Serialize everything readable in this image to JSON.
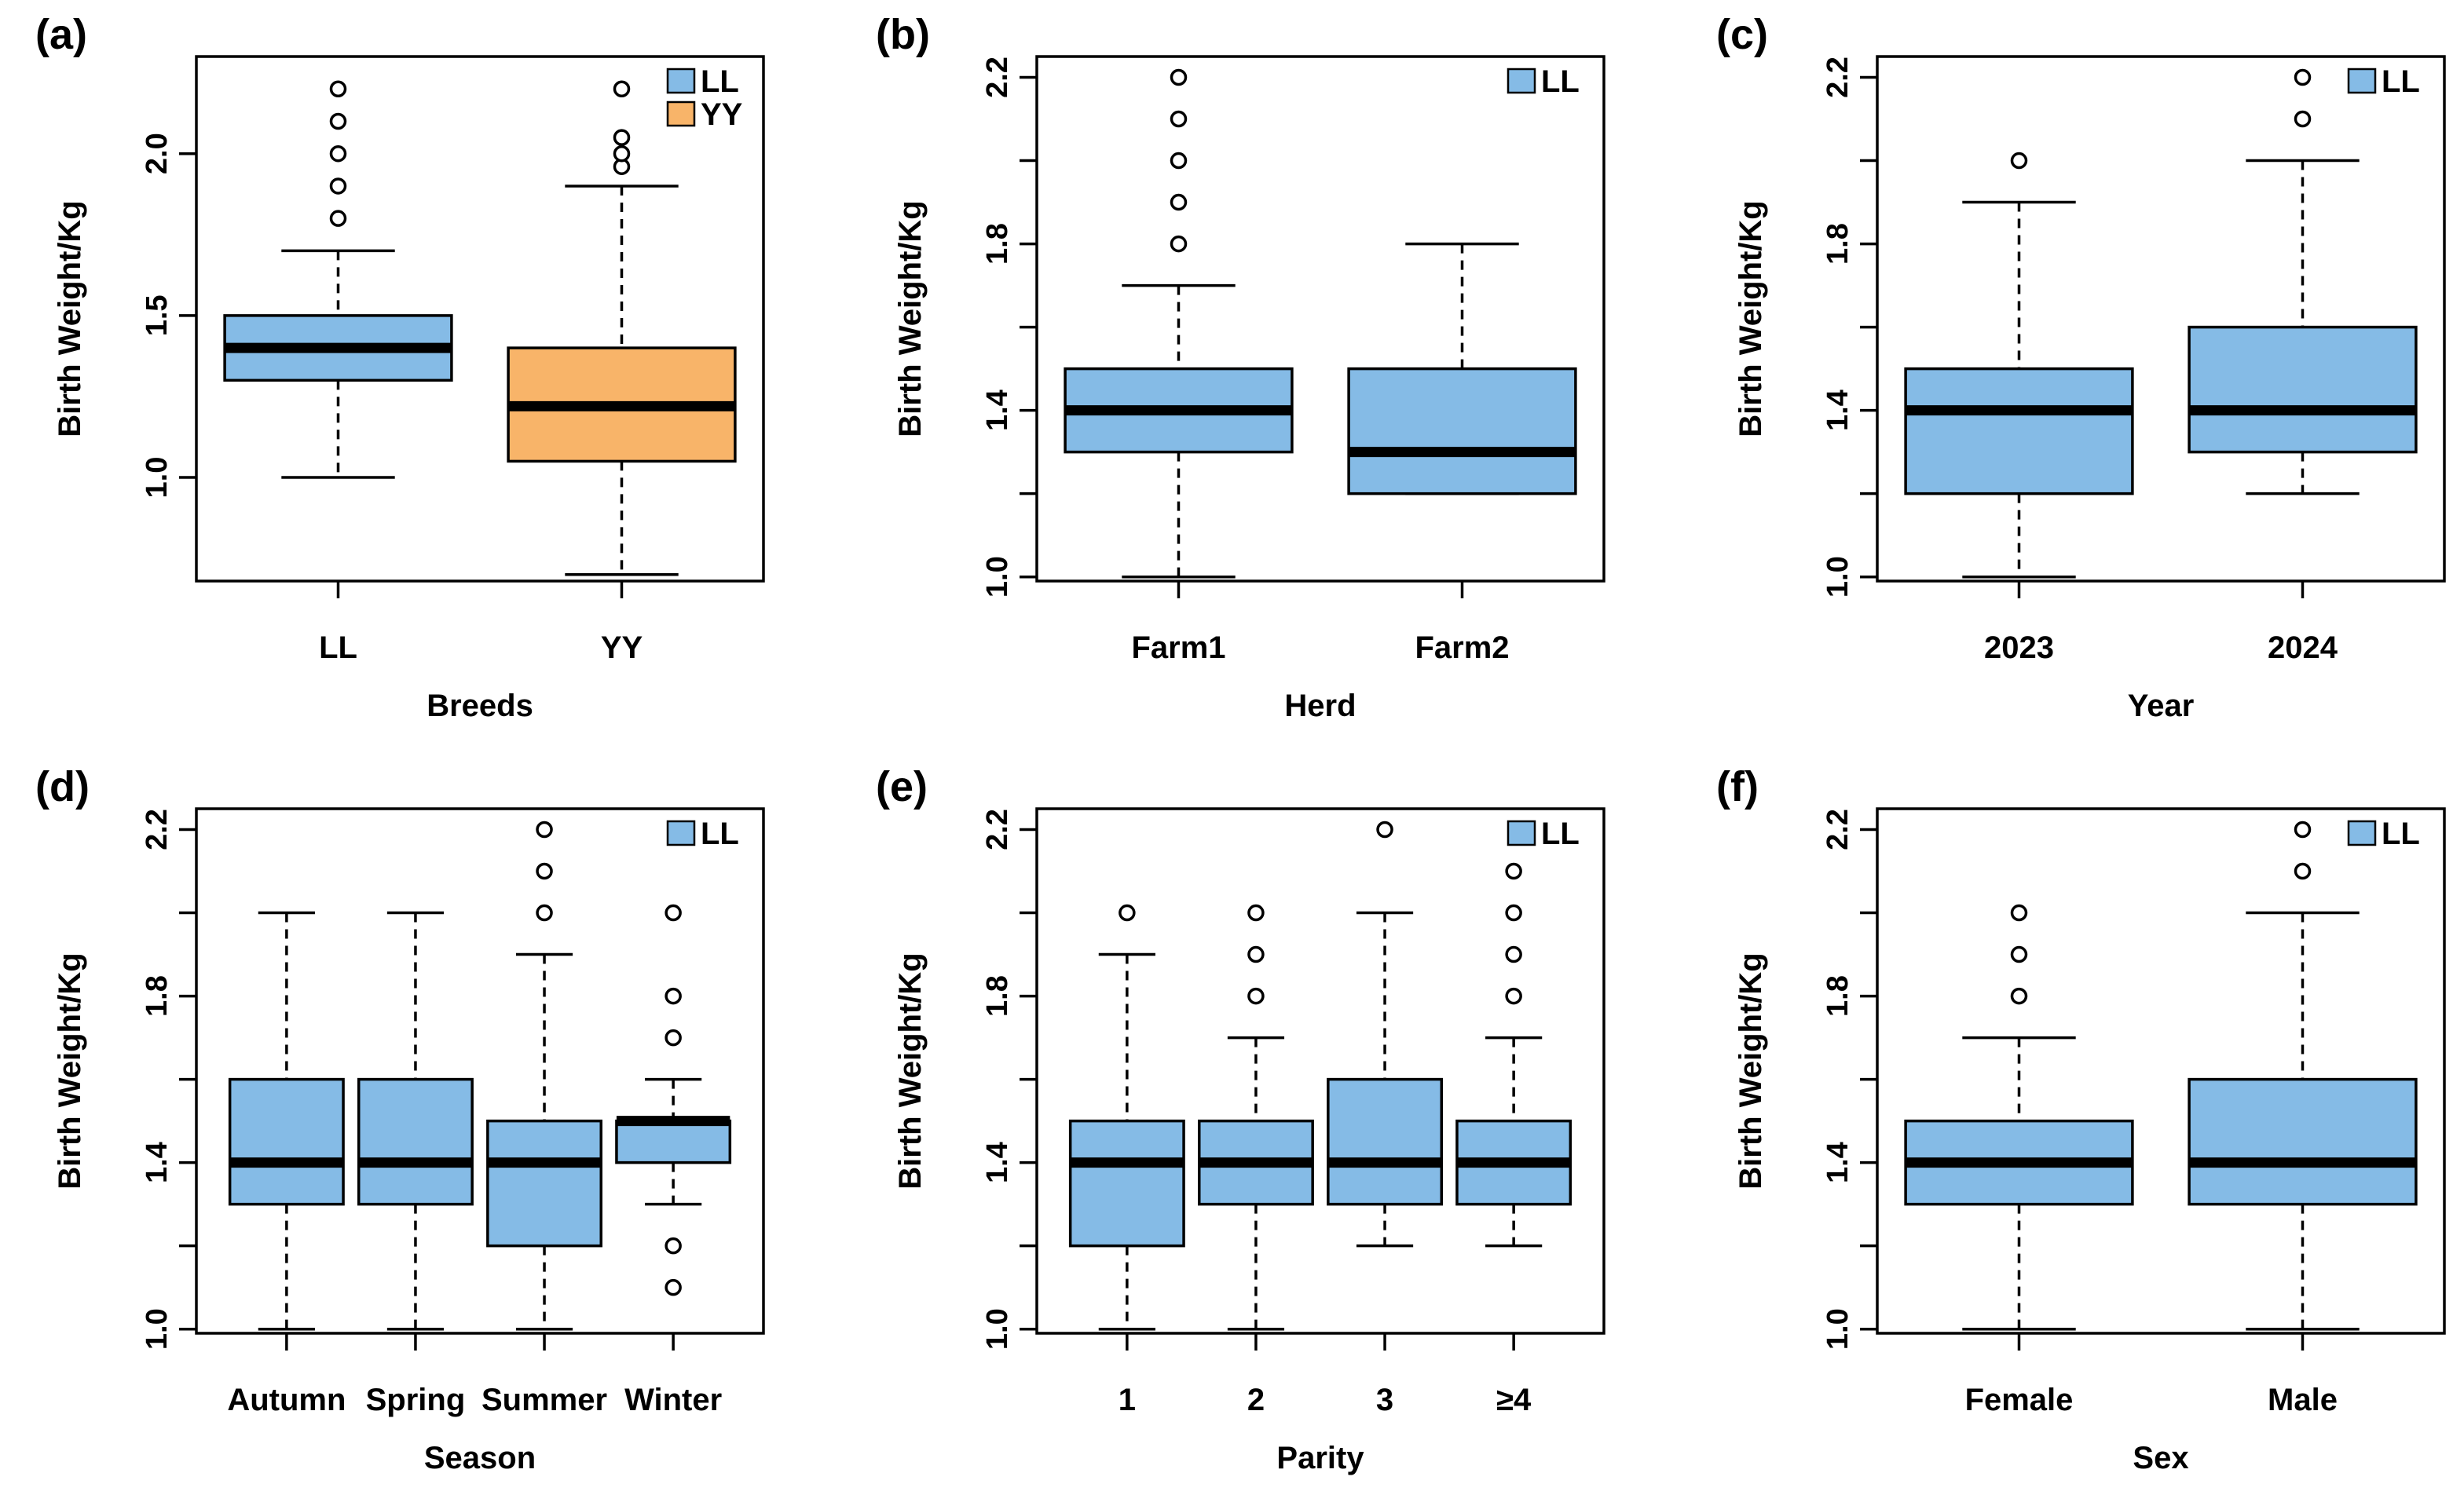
{
  "colors": {
    "LL": "#85bbe6",
    "YY": "#f8b469"
  },
  "chart_data": [
    {
      "type": "box",
      "panel_label": "(a)",
      "xlabel": "Breeds",
      "ylabel": "Birth Weight/Kg",
      "ylim": [
        0.68,
        2.3
      ],
      "yticks": [
        1.0,
        1.5,
        2.0
      ],
      "ytick_labels": [
        "1.0",
        "1.5",
        "2.0"
      ],
      "legend": [
        {
          "label": "LL",
          "color_key": "LL"
        },
        {
          "label": "YY",
          "color_key": "YY"
        }
      ],
      "groups": [
        {
          "label": "LL",
          "color_key": "LL",
          "min": 1.0,
          "q1": 1.3,
          "median": 1.4,
          "q3": 1.5,
          "max": 1.7,
          "outliers": [
            1.8,
            1.9,
            2.0,
            2.1,
            2.2
          ]
        },
        {
          "label": "YY",
          "color_key": "YY",
          "min": 0.7,
          "q1": 1.05,
          "median": 1.22,
          "q3": 1.4,
          "max": 1.9,
          "outliers": [
            1.96,
            2.0,
            2.05,
            2.2
          ]
        }
      ]
    },
    {
      "type": "box",
      "panel_label": "(b)",
      "xlabel": "Herd",
      "ylabel": "Birth Weight/Kg",
      "ylim": [
        0.99,
        2.25
      ],
      "yticks": [
        1.0,
        1.2,
        1.4,
        1.6,
        1.8,
        2.0,
        2.2
      ],
      "ytick_labels": [
        "1.0",
        "",
        "1.4",
        "",
        "1.8",
        "",
        "2.2"
      ],
      "legend": [
        {
          "label": "LL",
          "color_key": "LL"
        }
      ],
      "groups": [
        {
          "label": "Farm1",
          "color_key": "LL",
          "min": 1.0,
          "q1": 1.3,
          "median": 1.4,
          "q3": 1.5,
          "max": 1.7,
          "outliers": [
            1.8,
            1.9,
            2.0,
            2.1,
            2.2
          ]
        },
        {
          "label": "Farm2",
          "color_key": "LL",
          "min": 1.2,
          "q1": 1.2,
          "median": 1.3,
          "q3": 1.5,
          "max": 1.8,
          "outliers": []
        }
      ]
    },
    {
      "type": "box",
      "panel_label": "(c)",
      "xlabel": "Year",
      "ylabel": "Birth Weight/Kg",
      "ylim": [
        0.99,
        2.25
      ],
      "yticks": [
        1.0,
        1.2,
        1.4,
        1.6,
        1.8,
        2.0,
        2.2
      ],
      "ytick_labels": [
        "1.0",
        "",
        "1.4",
        "",
        "1.8",
        "",
        "2.2"
      ],
      "legend": [
        {
          "label": "LL",
          "color_key": "LL"
        }
      ],
      "groups": [
        {
          "label": "2023",
          "color_key": "LL",
          "min": 1.0,
          "q1": 1.2,
          "median": 1.4,
          "q3": 1.5,
          "max": 1.9,
          "outliers": [
            2.0
          ]
        },
        {
          "label": "2024",
          "color_key": "LL",
          "min": 1.2,
          "q1": 1.3,
          "median": 1.4,
          "q3": 1.6,
          "max": 2.0,
          "outliers": [
            2.1,
            2.2
          ]
        }
      ]
    },
    {
      "type": "box",
      "panel_label": "(d)",
      "xlabel": "Season",
      "ylabel": "Birth Weight/Kg",
      "ylim": [
        0.99,
        2.25
      ],
      "yticks": [
        1.0,
        1.2,
        1.4,
        1.6,
        1.8,
        2.0,
        2.2
      ],
      "ytick_labels": [
        "1.0",
        "",
        "1.4",
        "",
        "1.8",
        "",
        "2.2"
      ],
      "legend": [
        {
          "label": "LL",
          "color_key": "LL"
        }
      ],
      "groups": [
        {
          "label": "Autumn",
          "color_key": "LL",
          "min": 1.0,
          "q1": 1.3,
          "median": 1.4,
          "q3": 1.6,
          "max": 2.0,
          "outliers": []
        },
        {
          "label": "Spring",
          "color_key": "LL",
          "min": 1.0,
          "q1": 1.3,
          "median": 1.4,
          "q3": 1.6,
          "max": 2.0,
          "outliers": []
        },
        {
          "label": "Summer",
          "color_key": "LL",
          "min": 1.0,
          "q1": 1.2,
          "median": 1.4,
          "q3": 1.5,
          "max": 1.9,
          "outliers": [
            2.0,
            2.1,
            2.2
          ]
        },
        {
          "label": "Winter",
          "color_key": "LL",
          "min": 1.3,
          "q1": 1.4,
          "median": 1.5,
          "q3": 1.5,
          "max": 1.6,
          "outliers": [
            1.1,
            1.2,
            1.7,
            1.8,
            2.0
          ]
        }
      ]
    },
    {
      "type": "box",
      "panel_label": "(e)",
      "xlabel": "Parity",
      "ylabel": "Birth Weight/Kg",
      "ylim": [
        0.99,
        2.25
      ],
      "yticks": [
        1.0,
        1.2,
        1.4,
        1.6,
        1.8,
        2.0,
        2.2
      ],
      "ytick_labels": [
        "1.0",
        "",
        "1.4",
        "",
        "1.8",
        "",
        "2.2"
      ],
      "legend": [
        {
          "label": "LL",
          "color_key": "LL"
        }
      ],
      "groups": [
        {
          "label": "1",
          "color_key": "LL",
          "min": 1.0,
          "q1": 1.2,
          "median": 1.4,
          "q3": 1.5,
          "max": 1.9,
          "outliers": [
            2.0
          ]
        },
        {
          "label": "2",
          "color_key": "LL",
          "min": 1.0,
          "q1": 1.3,
          "median": 1.4,
          "q3": 1.5,
          "max": 1.7,
          "outliers": [
            1.8,
            1.9,
            2.0
          ]
        },
        {
          "label": "3",
          "color_key": "LL",
          "min": 1.2,
          "q1": 1.3,
          "median": 1.4,
          "q3": 1.6,
          "max": 2.0,
          "outliers": [
            2.2
          ]
        },
        {
          "label": "≥4",
          "color_key": "LL",
          "min": 1.2,
          "q1": 1.3,
          "median": 1.4,
          "q3": 1.5,
          "max": 1.7,
          "outliers": [
            1.8,
            1.9,
            2.0,
            2.1
          ]
        }
      ]
    },
    {
      "type": "box",
      "panel_label": "(f)",
      "xlabel": "Sex",
      "ylabel": "Birth Weight/Kg",
      "ylim": [
        0.99,
        2.25
      ],
      "yticks": [
        1.0,
        1.2,
        1.4,
        1.6,
        1.8,
        2.0,
        2.2
      ],
      "ytick_labels": [
        "1.0",
        "",
        "1.4",
        "",
        "1.8",
        "",
        "2.2"
      ],
      "legend": [
        {
          "label": "LL",
          "color_key": "LL"
        }
      ],
      "groups": [
        {
          "label": "Female",
          "color_key": "LL",
          "min": 1.0,
          "q1": 1.3,
          "median": 1.4,
          "q3": 1.5,
          "max": 1.7,
          "outliers": [
            1.8,
            1.9,
            2.0
          ]
        },
        {
          "label": "Male",
          "color_key": "LL",
          "min": 1.0,
          "q1": 1.3,
          "median": 1.4,
          "q3": 1.6,
          "max": 2.0,
          "outliers": [
            2.1,
            2.2
          ]
        }
      ]
    }
  ]
}
